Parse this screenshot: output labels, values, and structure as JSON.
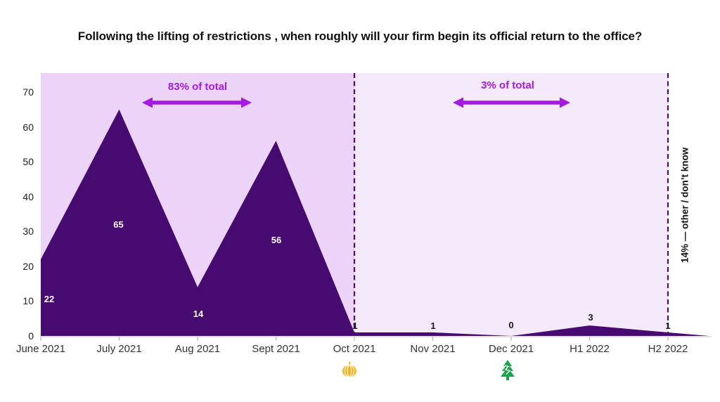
{
  "title": "Following the lifting of restrictions , when roughly will your firm begin its official return to the office?",
  "annotations": {
    "left_span_label": "83% of total",
    "right_span_label": "3% of total",
    "side_note": "14% — other / don’t know"
  },
  "icons": {
    "pumpkin": "pumpkin-icon (Halloween, under Oct 2021)",
    "tree": "christmas-tree-icon (Christmas, under Dec 2021)"
  },
  "colors": {
    "area": "#470a70",
    "band_left": "#ecd3f8",
    "band_right": "#f5e9fc",
    "dashed_line": "#4e0e74",
    "annotation": "#a41be0",
    "axis_line": "#c9c9c9",
    "tick": "#bbbbbb",
    "label_on_area": "#ffffff",
    "label_dark": "#1a1a1a",
    "pumpkin": "#f6b51e",
    "tree": "#17a44b"
  },
  "chart_data": {
    "type": "area",
    "title": "Following the lifting of restrictions , when roughly will your firm begin its official return to the office?",
    "categories": [
      "June 2021",
      "July 2021",
      "Aug 2021",
      "Sept 2021",
      "Oct 2021",
      "Nov 2021",
      "Dec 2021",
      "H1 2022",
      "H2 2022"
    ],
    "values": [
      22,
      65,
      14,
      56,
      1,
      1,
      0,
      3,
      1
    ],
    "xlabel": "",
    "ylabel": "",
    "yticks": [
      0,
      10,
      20,
      30,
      40,
      50,
      60,
      70
    ],
    "ylim": [
      0,
      75
    ],
    "grid": false,
    "legend_position": "none",
    "regions": [
      {
        "label": "83% of total",
        "from": "June 2021",
        "to": "Oct 2021"
      },
      {
        "label": "3% of total",
        "from": "Oct 2021",
        "to": "H2 2022"
      }
    ],
    "separators": [
      "Oct 2021",
      "H2 2022"
    ],
    "side_note": "14% — other / don’t know",
    "markers": [
      {
        "category": "Oct 2021",
        "icon": "pumpkin"
      },
      {
        "category": "Dec 2021",
        "icon": "christmas-tree"
      }
    ]
  }
}
